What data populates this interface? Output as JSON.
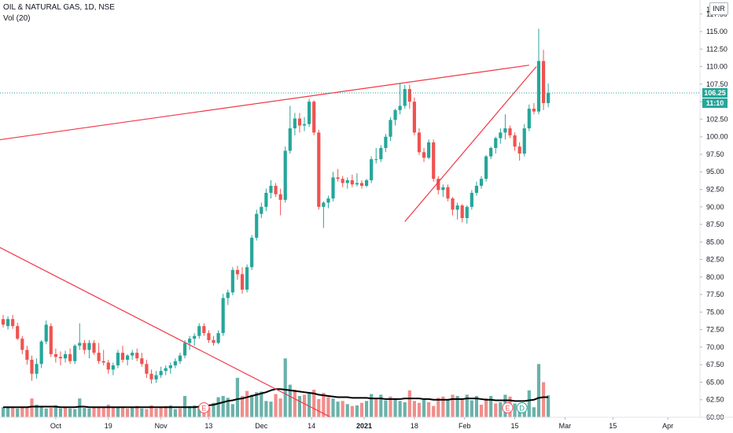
{
  "header": {
    "symbol_line": "OIL & NATURAL GAS, 1D, NSE",
    "volume_line": "Vol (20)"
  },
  "currency_button": "INR",
  "price_tags": {
    "last_price": "106.25",
    "countdown": "11:10"
  },
  "event_markers": [
    "E",
    "E",
    "D"
  ],
  "colors": {
    "up": "#26a69a",
    "down": "#ef5350",
    "trendline": "#f23645",
    "volume_ma": "#000000",
    "last_price_line": "#26a69a"
  },
  "chart_data": {
    "type": "candlestick",
    "y_axis_ticks": [
      "117.50",
      "115.00",
      "112.50",
      "110.00",
      "107.50",
      "105.00",
      "102.50",
      "100.00",
      "97.50",
      "95.00",
      "92.50",
      "90.00",
      "87.50",
      "85.00",
      "82.50",
      "80.00",
      "77.50",
      "75.00",
      "72.50",
      "70.00",
      "67.50",
      "65.00",
      "62.50",
      "60.00"
    ],
    "y_axis_top_partial": "1",
    "ylim": [
      60,
      119.5
    ],
    "x_axis_ticks": [
      "Oct",
      "19",
      "Nov",
      "13",
      "Dec",
      "14",
      "2021",
      "18",
      "Feb",
      "15",
      "Mar",
      "15",
      "Apr"
    ],
    "last_price": 106.25,
    "candles": [
      [
        74.0,
        74.6,
        72.8,
        73.2
      ],
      [
        73.0,
        74.4,
        72.5,
        74.0
      ],
      [
        74.0,
        74.6,
        72.6,
        73.0
      ],
      [
        73.0,
        73.5,
        71.0,
        71.2
      ],
      [
        71.2,
        71.6,
        69.0,
        69.6
      ],
      [
        69.6,
        70.2,
        67.5,
        68.2
      ],
      [
        68.2,
        68.8,
        65.2,
        66.2
      ],
      [
        66.2,
        68.4,
        65.5,
        67.6
      ],
      [
        67.6,
        71.0,
        67.0,
        70.8
      ],
      [
        70.8,
        73.8,
        70.4,
        73.2
      ],
      [
        73.0,
        73.4,
        68.6,
        69.0
      ],
      [
        69.0,
        69.8,
        67.8,
        68.6
      ],
      [
        68.6,
        69.4,
        67.4,
        68.4
      ],
      [
        68.4,
        69.5,
        67.8,
        69.0
      ],
      [
        69.0,
        69.8,
        67.6,
        68.0
      ],
      [
        68.0,
        70.4,
        67.6,
        70.2
      ],
      [
        70.2,
        73.4,
        69.6,
        70.6
      ],
      [
        70.6,
        71.0,
        69.0,
        69.6
      ],
      [
        69.6,
        71.0,
        68.4,
        70.6
      ],
      [
        70.6,
        71.0,
        68.9,
        69.2
      ],
      [
        69.2,
        70.6,
        67.6,
        68.0
      ],
      [
        68.0,
        69.6,
        67.4,
        67.8
      ],
      [
        67.8,
        68.2,
        66.2,
        66.8
      ],
      [
        66.8,
        67.8,
        66.0,
        67.4
      ],
      [
        67.4,
        69.6,
        67.0,
        69.2
      ],
      [
        69.2,
        70.2,
        67.8,
        68.2
      ],
      [
        68.2,
        69.0,
        67.4,
        68.8
      ],
      [
        68.8,
        69.6,
        68.2,
        69.2
      ],
      [
        69.2,
        69.8,
        68.0,
        68.4
      ],
      [
        68.4,
        69.2,
        67.2,
        67.6
      ],
      [
        67.6,
        68.2,
        65.6,
        66.2
      ],
      [
        66.2,
        66.8,
        64.8,
        65.4
      ],
      [
        65.4,
        66.6,
        64.9,
        66.0
      ],
      [
        66.0,
        67.2,
        65.6,
        66.6
      ],
      [
        66.6,
        67.4,
        66.0,
        67.0
      ],
      [
        67.0,
        67.8,
        66.2,
        67.4
      ],
      [
        67.4,
        68.4,
        67.0,
        68.0
      ],
      [
        68.0,
        69.2,
        67.6,
        68.8
      ],
      [
        68.8,
        71.0,
        68.4,
        70.6
      ],
      [
        70.6,
        71.6,
        69.6,
        71.2
      ],
      [
        71.2,
        72.0,
        70.2,
        71.6
      ],
      [
        71.6,
        73.4,
        71.2,
        73.0
      ],
      [
        73.0,
        73.4,
        71.6,
        72.0
      ],
      [
        72.0,
        72.4,
        70.6,
        71.0
      ],
      [
        71.0,
        71.6,
        70.2,
        70.6
      ],
      [
        70.6,
        72.4,
        70.4,
        72.0
      ],
      [
        72.0,
        77.6,
        71.6,
        77.0
      ],
      [
        77.0,
        78.2,
        76.0,
        77.8
      ],
      [
        77.8,
        81.4,
        77.4,
        81.0
      ],
      [
        81.0,
        81.6,
        79.6,
        80.4
      ],
      [
        80.4,
        81.4,
        77.6,
        78.2
      ],
      [
        78.2,
        81.8,
        77.8,
        81.4
      ],
      [
        81.4,
        86.0,
        81.0,
        85.6
      ],
      [
        85.6,
        89.6,
        85.2,
        89.0
      ],
      [
        89.0,
        90.6,
        88.4,
        90.0
      ],
      [
        90.0,
        92.6,
        89.4,
        92.0
      ],
      [
        92.0,
        93.8,
        91.2,
        93.0
      ],
      [
        93.0,
        93.4,
        91.4,
        91.8
      ],
      [
        91.8,
        92.6,
        88.8,
        91.0
      ],
      [
        91.0,
        98.6,
        90.6,
        98.0
      ],
      [
        98.0,
        104.4,
        97.6,
        101.2
      ],
      [
        101.2,
        103.4,
        100.2,
        102.6
      ],
      [
        102.6,
        103.4,
        100.6,
        101.6
      ],
      [
        101.6,
        102.8,
        100.8,
        101.8
      ],
      [
        101.8,
        105.4,
        101.4,
        105.0
      ],
      [
        105.0,
        105.2,
        100.2,
        100.6
      ],
      [
        100.6,
        101.0,
        89.6,
        90.0
      ],
      [
        90.0,
        90.8,
        87.0,
        90.6
      ],
      [
        90.6,
        91.6,
        89.8,
        91.2
      ],
      [
        91.2,
        95.0,
        90.8,
        94.2
      ],
      [
        94.2,
        95.4,
        93.6,
        94.0
      ],
      [
        94.0,
        94.4,
        92.8,
        93.4
      ],
      [
        93.4,
        94.2,
        92.6,
        93.8
      ],
      [
        93.8,
        94.6,
        92.8,
        93.2
      ],
      [
        93.2,
        94.8,
        92.9,
        93.4
      ],
      [
        93.4,
        93.8,
        92.6,
        93.0
      ],
      [
        93.0,
        94.0,
        92.8,
        93.8
      ],
      [
        93.8,
        97.2,
        93.4,
        96.8
      ],
      [
        96.8,
        98.4,
        96.2,
        96.8
      ],
      [
        96.8,
        98.8,
        96.4,
        98.4
      ],
      [
        98.4,
        100.4,
        97.8,
        100.0
      ],
      [
        100.0,
        102.8,
        99.4,
        102.4
      ],
      [
        102.4,
        104.0,
        101.6,
        103.8
      ],
      [
        103.8,
        107.6,
        103.2,
        104.4
      ],
      [
        104.4,
        107.4,
        104.0,
        106.8
      ],
      [
        106.8,
        107.4,
        104.0,
        105.0
      ],
      [
        105.0,
        105.6,
        100.2,
        100.6
      ],
      [
        100.6,
        101.2,
        97.4,
        97.8
      ],
      [
        97.8,
        98.4,
        96.4,
        97.0
      ],
      [
        97.0,
        99.6,
        96.8,
        99.2
      ],
      [
        99.2,
        99.6,
        93.6,
        94.0
      ],
      [
        94.0,
        94.4,
        91.8,
        92.4
      ],
      [
        92.4,
        93.2,
        91.4,
        92.8
      ],
      [
        92.8,
        93.2,
        90.8,
        91.2
      ],
      [
        91.2,
        91.4,
        88.8,
        89.6
      ],
      [
        89.6,
        90.6,
        88.2,
        90.2
      ],
      [
        90.2,
        90.4,
        87.8,
        88.4
      ],
      [
        88.4,
        90.2,
        87.6,
        90.0
      ],
      [
        90.0,
        92.4,
        89.6,
        92.0
      ],
      [
        92.0,
        93.6,
        91.6,
        93.0
      ],
      [
        93.0,
        94.4,
        92.6,
        94.0
      ],
      [
        94.0,
        97.4,
        93.6,
        97.2
      ],
      [
        97.2,
        98.6,
        96.8,
        98.4
      ],
      [
        98.4,
        100.0,
        97.6,
        99.8
      ],
      [
        99.8,
        101.2,
        99.0,
        100.6
      ],
      [
        100.6,
        103.2,
        99.6,
        101.2
      ],
      [
        101.2,
        101.6,
        99.8,
        100.2
      ],
      [
        100.2,
        100.6,
        98.0,
        98.6
      ],
      [
        98.6,
        99.2,
        96.6,
        97.6
      ],
      [
        97.6,
        101.8,
        97.2,
        101.2
      ],
      [
        101.2,
        104.6,
        100.8,
        104.0
      ],
      [
        104.0,
        104.8,
        103.2,
        103.6
      ],
      [
        103.6,
        115.4,
        103.2,
        110.8
      ],
      [
        110.8,
        112.4,
        103.8,
        104.8
      ],
      [
        104.8,
        107.6,
        104.2,
        106.25
      ]
    ],
    "volumes": [
      [
        1.6,
        1
      ],
      [
        1.7,
        1
      ],
      [
        1.5,
        0
      ],
      [
        1.4,
        1
      ],
      [
        1.7,
        0
      ],
      [
        1.5,
        0
      ],
      [
        3.0,
        0
      ],
      [
        2.0,
        1
      ],
      [
        1.7,
        1
      ],
      [
        1.4,
        1
      ],
      [
        1.5,
        0
      ],
      [
        1.9,
        1
      ],
      [
        1.4,
        1
      ],
      [
        1.5,
        0
      ],
      [
        1.4,
        1
      ],
      [
        1.3,
        1
      ],
      [
        3.0,
        1
      ],
      [
        1.5,
        1
      ],
      [
        1.4,
        1
      ],
      [
        1.7,
        0
      ],
      [
        1.6,
        0
      ],
      [
        1.5,
        0
      ],
      [
        2.0,
        0
      ],
      [
        1.7,
        0
      ],
      [
        1.6,
        1
      ],
      [
        1.5,
        0
      ],
      [
        1.4,
        0
      ],
      [
        1.5,
        1
      ],
      [
        1.8,
        0
      ],
      [
        1.4,
        1
      ],
      [
        1.3,
        0
      ],
      [
        1.9,
        0
      ],
      [
        1.4,
        0
      ],
      [
        1.5,
        0
      ],
      [
        1.8,
        0
      ],
      [
        1.9,
        1
      ],
      [
        1.3,
        1
      ],
      [
        1.4,
        0
      ],
      [
        3.4,
        1
      ],
      [
        1.8,
        1
      ],
      [
        1.9,
        1
      ],
      [
        1.5,
        1
      ],
      [
        1.4,
        0
      ],
      [
        1.6,
        0
      ],
      [
        2.3,
        1
      ],
      [
        3.2,
        1
      ],
      [
        3.4,
        1
      ],
      [
        3.1,
        1
      ],
      [
        2.1,
        1
      ],
      [
        6.3,
        1
      ],
      [
        3.4,
        0
      ],
      [
        4.2,
        0
      ],
      [
        3.6,
        1
      ],
      [
        4.0,
        1
      ],
      [
        4.1,
        1
      ],
      [
        2.6,
        1
      ],
      [
        2.5,
        1
      ],
      [
        3.7,
        0
      ],
      [
        3.0,
        0
      ],
      [
        9.4,
        1
      ],
      [
        5.2,
        1
      ],
      [
        4.4,
        0
      ],
      [
        3.4,
        1
      ],
      [
        3.6,
        0
      ],
      [
        3.8,
        1
      ],
      [
        4.4,
        0
      ],
      [
        2.9,
        0
      ],
      [
        3.9,
        0
      ],
      [
        3.2,
        0
      ],
      [
        3.0,
        1
      ],
      [
        2.5,
        1
      ],
      [
        2.6,
        0
      ],
      [
        2.1,
        1
      ],
      [
        1.8,
        0
      ],
      [
        1.9,
        1
      ],
      [
        2.3,
        0
      ],
      [
        2.6,
        1
      ],
      [
        3.7,
        1
      ],
      [
        3.0,
        0
      ],
      [
        3.6,
        1
      ],
      [
        2.7,
        1
      ],
      [
        3.3,
        0
      ],
      [
        2.9,
        1
      ],
      [
        2.6,
        1
      ],
      [
        2.4,
        1
      ],
      [
        4.3,
        0
      ],
      [
        2.6,
        0
      ],
      [
        2.3,
        0
      ],
      [
        3.0,
        1
      ],
      [
        2.4,
        0
      ],
      [
        1.8,
        0
      ],
      [
        3.1,
        0
      ],
      [
        3.3,
        0
      ],
      [
        2.8,
        1
      ],
      [
        3.6,
        0
      ],
      [
        3.4,
        1
      ],
      [
        3.0,
        0
      ],
      [
        3.6,
        1
      ],
      [
        2.7,
        1
      ],
      [
        3.4,
        1
      ],
      [
        2.0,
        0
      ],
      [
        3.0,
        0
      ],
      [
        3.4,
        1
      ],
      [
        2.2,
        0
      ],
      [
        2.4,
        1
      ],
      [
        3.6,
        1
      ],
      [
        3.3,
        0
      ],
      [
        2.2,
        1
      ],
      [
        1.8,
        1
      ],
      [
        1.6,
        1
      ],
      [
        4.3,
        1
      ],
      [
        1.6,
        1
      ],
      [
        8.5,
        1
      ],
      [
        5.6,
        0
      ],
      [
        3.5,
        1
      ]
    ],
    "volume_ma": [
      1.6,
      1.6,
      1.6,
      1.6,
      1.6,
      1.6,
      1.7,
      1.7,
      1.7,
      1.7,
      1.7,
      1.7,
      1.6,
      1.6,
      1.6,
      1.6,
      1.7,
      1.7,
      1.6,
      1.6,
      1.6,
      1.6,
      1.6,
      1.6,
      1.6,
      1.6,
      1.6,
      1.6,
      1.6,
      1.6,
      1.6,
      1.6,
      1.6,
      1.6,
      1.6,
      1.6,
      1.6,
      1.6,
      1.6,
      1.6,
      1.6,
      1.7,
      1.8,
      1.9,
      2.0,
      2.2,
      2.4,
      2.6,
      2.7,
      2.9,
      3.0,
      3.2,
      3.4,
      3.6,
      3.8,
      4.0,
      4.3,
      4.5,
      4.5,
      4.4,
      4.3,
      4.2,
      4.1,
      4.0,
      3.9,
      3.8,
      3.6,
      3.5,
      3.4,
      3.3,
      3.2,
      3.2,
      3.2,
      3.1,
      3.1,
      3.1,
      3.1,
      3.0,
      3.0,
      3.0,
      2.9,
      2.9,
      2.9,
      2.9,
      3.0,
      3.0,
      3.0,
      3.0,
      2.9,
      2.9,
      2.8,
      2.8,
      2.8,
      2.8,
      2.9,
      2.9,
      2.9,
      3.0,
      3.0,
      3.0,
      2.9,
      2.8,
      2.8,
      2.7,
      2.7,
      2.7,
      2.7,
      2.6,
      2.6,
      2.6,
      2.7,
      2.8,
      3.1,
      3.2,
      3.2
    ],
    "volume_ylim": [
      0,
      22
    ],
    "trendlines": [
      {
        "from": [
          -1.5,
          99.5
        ],
        "to": [
          110.0,
          110.2
        ]
      },
      {
        "from": [
          -1.5,
          84.5
        ],
        "to": [
          68.5,
          60.0
        ]
      },
      {
        "from": [
          84.0,
          87.9
        ],
        "to": [
          111.5,
          110.0
        ]
      }
    ]
  }
}
